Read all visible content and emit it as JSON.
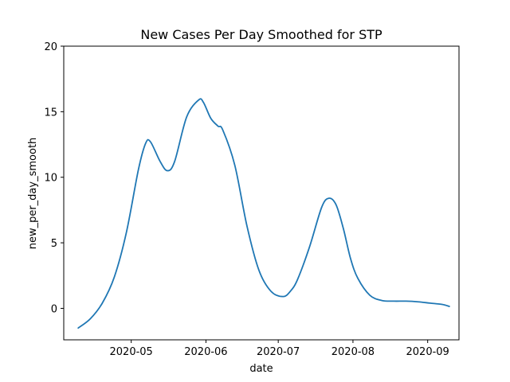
{
  "chart_data": {
    "type": "line",
    "title": "New Cases Per Day Smoothed for STP",
    "xlabel": "date",
    "ylabel": "new_per_day_smooth",
    "x_tick_labels": [
      "2020-05",
      "2020-06",
      "2020-07",
      "2020-08",
      "2020-09"
    ],
    "y_tick_labels": [
      "0",
      "5",
      "10",
      "15",
      "20"
    ],
    "xlim": [
      "2020-04-03",
      "2020-09-14"
    ],
    "ylim": [
      -2.4,
      20
    ],
    "grid": false,
    "series_color": "#1f77b4",
    "series": [
      {
        "x": [
          "2020-04-09",
          "2020-04-14",
          "2020-04-19",
          "2020-04-24",
          "2020-04-29",
          "2020-05-04",
          "2020-05-07",
          "2020-05-09",
          "2020-05-13",
          "2020-05-16",
          "2020-05-19",
          "2020-05-24",
          "2020-05-29",
          "2020-05-31",
          "2020-06-03",
          "2020-06-06",
          "2020-06-08",
          "2020-06-13",
          "2020-06-18",
          "2020-06-23",
          "2020-06-28",
          "2020-07-03",
          "2020-07-06",
          "2020-07-09",
          "2020-07-14",
          "2020-07-19",
          "2020-07-22",
          "2020-07-25",
          "2020-07-28",
          "2020-07-31",
          "2020-08-03",
          "2020-08-08",
          "2020-08-13",
          "2020-08-18",
          "2020-08-23",
          "2020-08-28",
          "2020-09-02",
          "2020-09-07",
          "2020-09-10"
        ],
        "y": [
          -1.5,
          -0.8,
          0.4,
          2.4,
          5.8,
          10.6,
          12.6,
          12.7,
          11.2,
          10.5,
          11.2,
          14.6,
          15.9,
          15.7,
          14.5,
          13.9,
          13.6,
          10.9,
          6.3,
          2.9,
          1.3,
          0.9,
          1.3,
          2.2,
          4.7,
          7.7,
          8.4,
          7.9,
          6.1,
          3.8,
          2.3,
          1.0,
          0.6,
          0.55,
          0.55,
          0.5,
          0.4,
          0.3,
          0.15
        ]
      }
    ]
  }
}
